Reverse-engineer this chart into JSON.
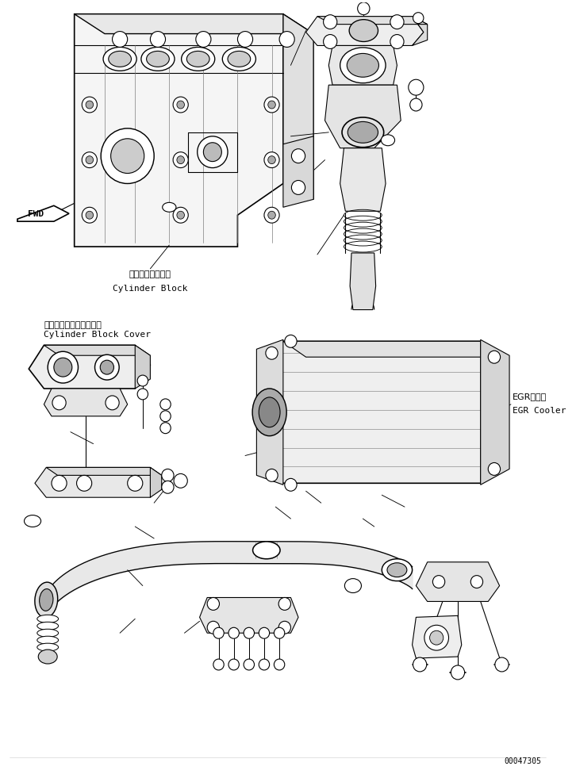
{
  "background_color": "#ffffff",
  "line_color": "#000000",
  "line_width": 0.8,
  "fig_width": 7.26,
  "fig_height": 9.76,
  "dpi": 100,
  "label_cylinder_block_jp": "シリンダブロック",
  "label_cylinder_block_en": "Cylinder Block",
  "label_cover_jp": "シリンダブロックカバー",
  "label_cover_en": "Cylinder Block Cover",
  "label_egr_jp": "EGRクーラ",
  "label_egr_en": "EGR Cooler",
  "label_fwd": "FWD",
  "part_number": "00047305"
}
